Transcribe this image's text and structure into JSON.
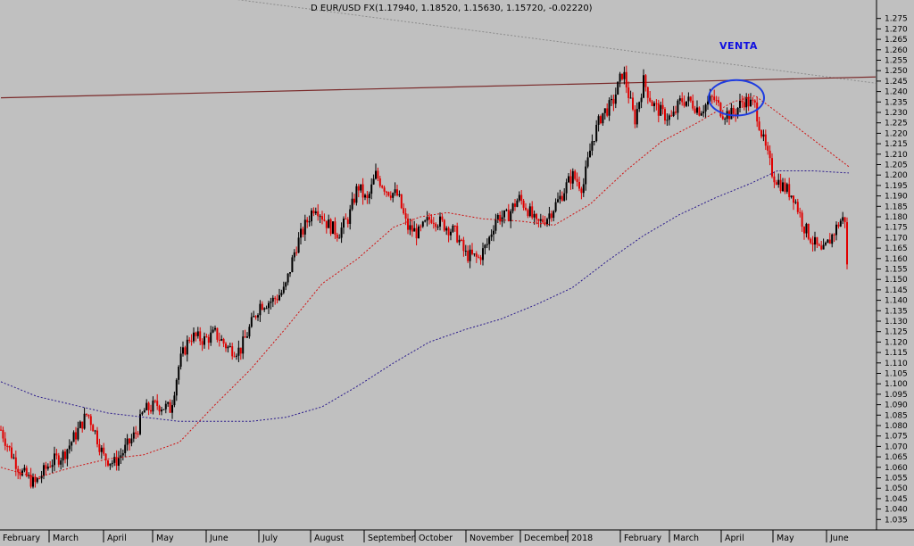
{
  "chart_data": {
    "type": "candlestick",
    "title": "D EUR/USD FX(1.17940, 1.18520, 1.15630, 1.15720, -0.02220)",
    "annotation": "VENTA",
    "y_axis": {
      "position": "right",
      "range": [
        1.03,
        1.28
      ],
      "tick_step": 0.005,
      "tick_labels": [
        "1.035",
        "1.040",
        "1.045",
        "1.050",
        "1.055",
        "1.060",
        "1.065",
        "1.070",
        "1.075",
        "1.080",
        "1.085",
        "1.090",
        "1.095",
        "1.100",
        "1.105",
        "1.110",
        "1.115",
        "1.120",
        "1.125",
        "1.130",
        "1.135",
        "1.140",
        "1.145",
        "1.150",
        "1.155",
        "1.160",
        "1.165",
        "1.170",
        "1.175",
        "1.180",
        "1.185",
        "1.190",
        "1.195",
        "1.200",
        "1.205",
        "1.210",
        "1.215",
        "1.220",
        "1.225",
        "1.230",
        "1.235",
        "1.240",
        "1.245",
        "1.250",
        "1.255",
        "1.260",
        "1.265",
        "1.270",
        "1.275"
      ]
    },
    "x_axis": {
      "tick_labels": [
        "February",
        "March",
        "April",
        "May",
        "June",
        "July",
        "August",
        "September",
        "October",
        "November",
        "December",
        "2018",
        "February",
        "March",
        "April",
        "May",
        "June"
      ]
    },
    "grid": false,
    "price_anchors": [
      [
        0,
        1.078
      ],
      [
        10,
        1.068
      ],
      [
        22,
        1.058
      ],
      [
        38,
        1.052
      ],
      [
        55,
        1.062
      ],
      [
        70,
        1.066
      ],
      [
        83,
        1.075
      ],
      [
        97,
        1.086
      ],
      [
        103,
        1.08
      ],
      [
        115,
        1.065
      ],
      [
        127,
        1.062
      ],
      [
        138,
        1.068
      ],
      [
        152,
        1.077
      ],
      [
        160,
        1.087
      ],
      [
        175,
        1.09
      ],
      [
        190,
        1.088
      ],
      [
        200,
        1.11
      ],
      [
        212,
        1.123
      ],
      [
        228,
        1.121
      ],
      [
        240,
        1.124
      ],
      [
        255,
        1.117
      ],
      [
        268,
        1.116
      ],
      [
        280,
        1.128
      ],
      [
        290,
        1.138
      ],
      [
        305,
        1.14
      ],
      [
        318,
        1.145
      ],
      [
        330,
        1.165
      ],
      [
        340,
        1.175
      ],
      [
        352,
        1.186
      ],
      [
        365,
        1.177
      ],
      [
        378,
        1.172
      ],
      [
        390,
        1.18
      ],
      [
        400,
        1.195
      ],
      [
        410,
        1.187
      ],
      [
        420,
        1.2
      ],
      [
        432,
        1.193
      ],
      [
        445,
        1.19
      ],
      [
        455,
        1.175
      ],
      [
        468,
        1.172
      ],
      [
        482,
        1.18
      ],
      [
        497,
        1.176
      ],
      [
        510,
        1.172
      ],
      [
        520,
        1.162
      ],
      [
        535,
        1.16
      ],
      [
        545,
        1.167
      ],
      [
        555,
        1.18
      ],
      [
        567,
        1.18
      ],
      [
        580,
        1.189
      ],
      [
        590,
        1.184
      ],
      [
        600,
        1.176
      ],
      [
        612,
        1.18
      ],
      [
        625,
        1.188
      ],
      [
        640,
        1.2
      ],
      [
        652,
        1.194
      ],
      [
        662,
        1.216
      ],
      [
        673,
        1.229
      ],
      [
        685,
        1.234
      ],
      [
        697,
        1.25
      ],
      [
        710,
        1.226
      ],
      [
        720,
        1.245
      ],
      [
        730,
        1.234
      ],
      [
        742,
        1.229
      ],
      [
        752,
        1.227
      ],
      [
        762,
        1.236
      ],
      [
        773,
        1.235
      ],
      [
        783,
        1.231
      ],
      [
        798,
        1.237
      ],
      [
        808,
        1.23
      ],
      [
        820,
        1.229
      ],
      [
        832,
        1.236
      ],
      [
        845,
        1.233
      ],
      [
        855,
        1.215
      ],
      [
        865,
        1.2
      ],
      [
        875,
        1.195
      ],
      [
        888,
        1.19
      ],
      [
        900,
        1.175
      ],
      [
        910,
        1.168
      ],
      [
        920,
        1.162
      ],
      [
        930,
        1.17
      ],
      [
        940,
        1.178
      ],
      [
        950,
        1.18
      ]
    ],
    "moving_average_fast": [
      [
        0,
        1.06
      ],
      [
        40,
        1.055
      ],
      [
        80,
        1.06
      ],
      [
        120,
        1.064
      ],
      [
        160,
        1.066
      ],
      [
        200,
        1.072
      ],
      [
        240,
        1.09
      ],
      [
        280,
        1.107
      ],
      [
        320,
        1.127
      ],
      [
        360,
        1.148
      ],
      [
        400,
        1.16
      ],
      [
        440,
        1.175
      ],
      [
        470,
        1.18
      ],
      [
        500,
        1.182
      ],
      [
        540,
        1.179
      ],
      [
        580,
        1.178
      ],
      [
        620,
        1.176
      ],
      [
        660,
        1.186
      ],
      [
        700,
        1.202
      ],
      [
        740,
        1.216
      ],
      [
        780,
        1.225
      ],
      [
        820,
        1.235
      ],
      [
        845,
        1.238
      ],
      [
        870,
        1.23
      ],
      [
        910,
        1.217
      ],
      [
        950,
        1.204
      ]
    ],
    "moving_average_slow": [
      [
        0,
        1.101
      ],
      [
        40,
        1.094
      ],
      [
        80,
        1.09
      ],
      [
        120,
        1.086
      ],
      [
        160,
        1.084
      ],
      [
        200,
        1.082
      ],
      [
        240,
        1.082
      ],
      [
        280,
        1.082
      ],
      [
        320,
        1.084
      ],
      [
        360,
        1.089
      ],
      [
        400,
        1.099
      ],
      [
        440,
        1.11
      ],
      [
        480,
        1.12
      ],
      [
        520,
        1.126
      ],
      [
        560,
        1.131
      ],
      [
        600,
        1.138
      ],
      [
        640,
        1.146
      ],
      [
        680,
        1.159
      ],
      [
        720,
        1.171
      ],
      [
        760,
        1.181
      ],
      [
        800,
        1.189
      ],
      [
        840,
        1.196
      ],
      [
        870,
        1.202
      ],
      [
        910,
        1.202
      ],
      [
        950,
        1.201
      ]
    ],
    "resistance_line": {
      "points": [
        [
          0,
          1.237
        ],
        [
          980,
          1.247
        ]
      ],
      "color": "#7a2a2a"
    },
    "trend_line": {
      "points": [
        [
          230,
          1.286
        ],
        [
          980,
          1.244
        ]
      ],
      "color": "#8c8c8c"
    },
    "annotation_ellipse": {
      "center": [
        824,
        1.237
      ],
      "rx_days": 31,
      "ry": 0.0085,
      "color": "#1e3ce0"
    },
    "colors": {
      "background": "#c0c0c0",
      "up": "#000000",
      "down": "#e00000",
      "ma_fast": "#d01010",
      "ma_slow": "#2a1a8c",
      "annotation": "#1010e0"
    }
  }
}
